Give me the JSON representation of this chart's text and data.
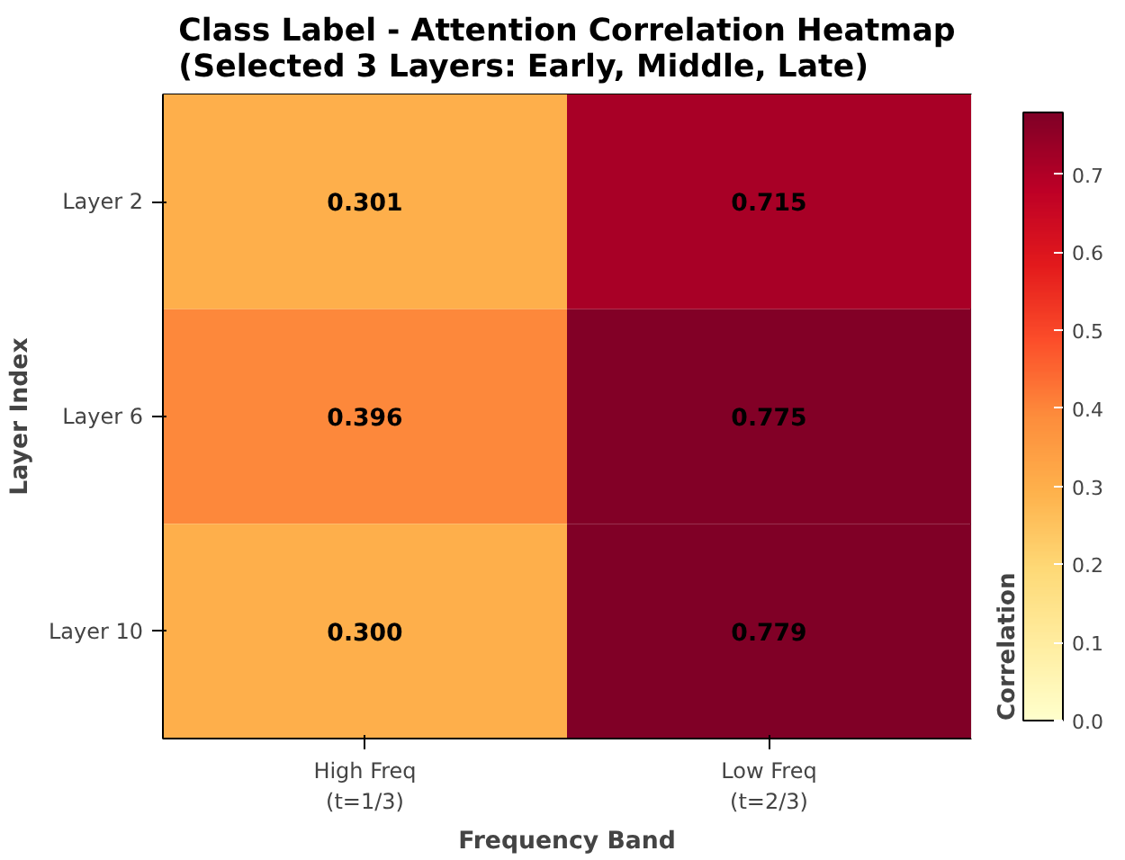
{
  "chart_data": {
    "type": "heatmap",
    "title": "Class Label - Attention Correlation Heatmap\n(Selected 3 Layers: Early, Middle, Late)",
    "xlabel": "Frequency Band",
    "ylabel": "Layer Index",
    "clabel": "Correlation",
    "categories": [
      "High Freq\n(t=1/3)",
      "Low Freq\n(t=2/3)"
    ],
    "y_categories": [
      "Layer 2",
      "Layer 6",
      "Layer 10"
    ],
    "cells": [
      [
        0.301,
        0.715
      ],
      [
        0.396,
        0.775
      ],
      [
        0.3,
        0.779
      ]
    ],
    "cell_labels": [
      [
        "0.301",
        "0.715"
      ],
      [
        "0.396",
        "0.775"
      ],
      [
        "0.300",
        "0.779"
      ]
    ],
    "clim": [
      0,
      0.779
    ],
    "cticks": [
      {
        "value": 0,
        "label": "0.0"
      },
      0.1,
      0.2,
      0.3,
      0.4,
      0.5,
      0.6,
      0.7
    ]
  }
}
